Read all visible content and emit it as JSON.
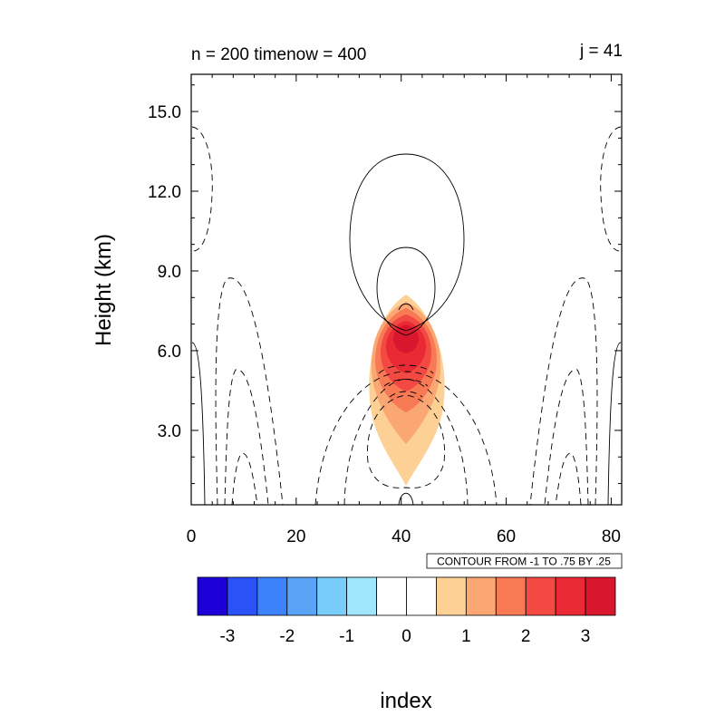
{
  "chart_data": {
    "type": "contour",
    "title_left": "n = 200 timenow = 400",
    "title_right": "j = 41",
    "xlabel": "index",
    "ylabel": "Height (km)",
    "xlim": [
      0,
      82
    ],
    "ylim": [
      0.2,
      16.4
    ],
    "x_ticks": [
      0,
      20,
      40,
      60,
      80
    ],
    "y_ticks": [
      3.0,
      6.0,
      9.0,
      12.0,
      15.0
    ],
    "y_tick_labels": [
      "3.0",
      "6.0",
      "9.0",
      "12.0",
      "15.0"
    ],
    "contour_info": "CONTOUR FROM -1 TO .75 BY .25",
    "colorbar": {
      "colors": [
        "#1d00d8",
        "#2a52f6",
        "#3c82fb",
        "#5aa4f8",
        "#78cdfa",
        "#a0e6fd",
        "#ffffff",
        "#ffffff",
        "#fdd195",
        "#fba774",
        "#f87a55",
        "#f24a42",
        "#e92a35",
        "#d8172e"
      ],
      "labels": [
        "-3",
        "-2",
        "-1",
        "0",
        "1",
        "2",
        "3"
      ]
    },
    "fill_peak": {
      "x": 41,
      "z": 6.3,
      "max_level": 3.5
    }
  }
}
